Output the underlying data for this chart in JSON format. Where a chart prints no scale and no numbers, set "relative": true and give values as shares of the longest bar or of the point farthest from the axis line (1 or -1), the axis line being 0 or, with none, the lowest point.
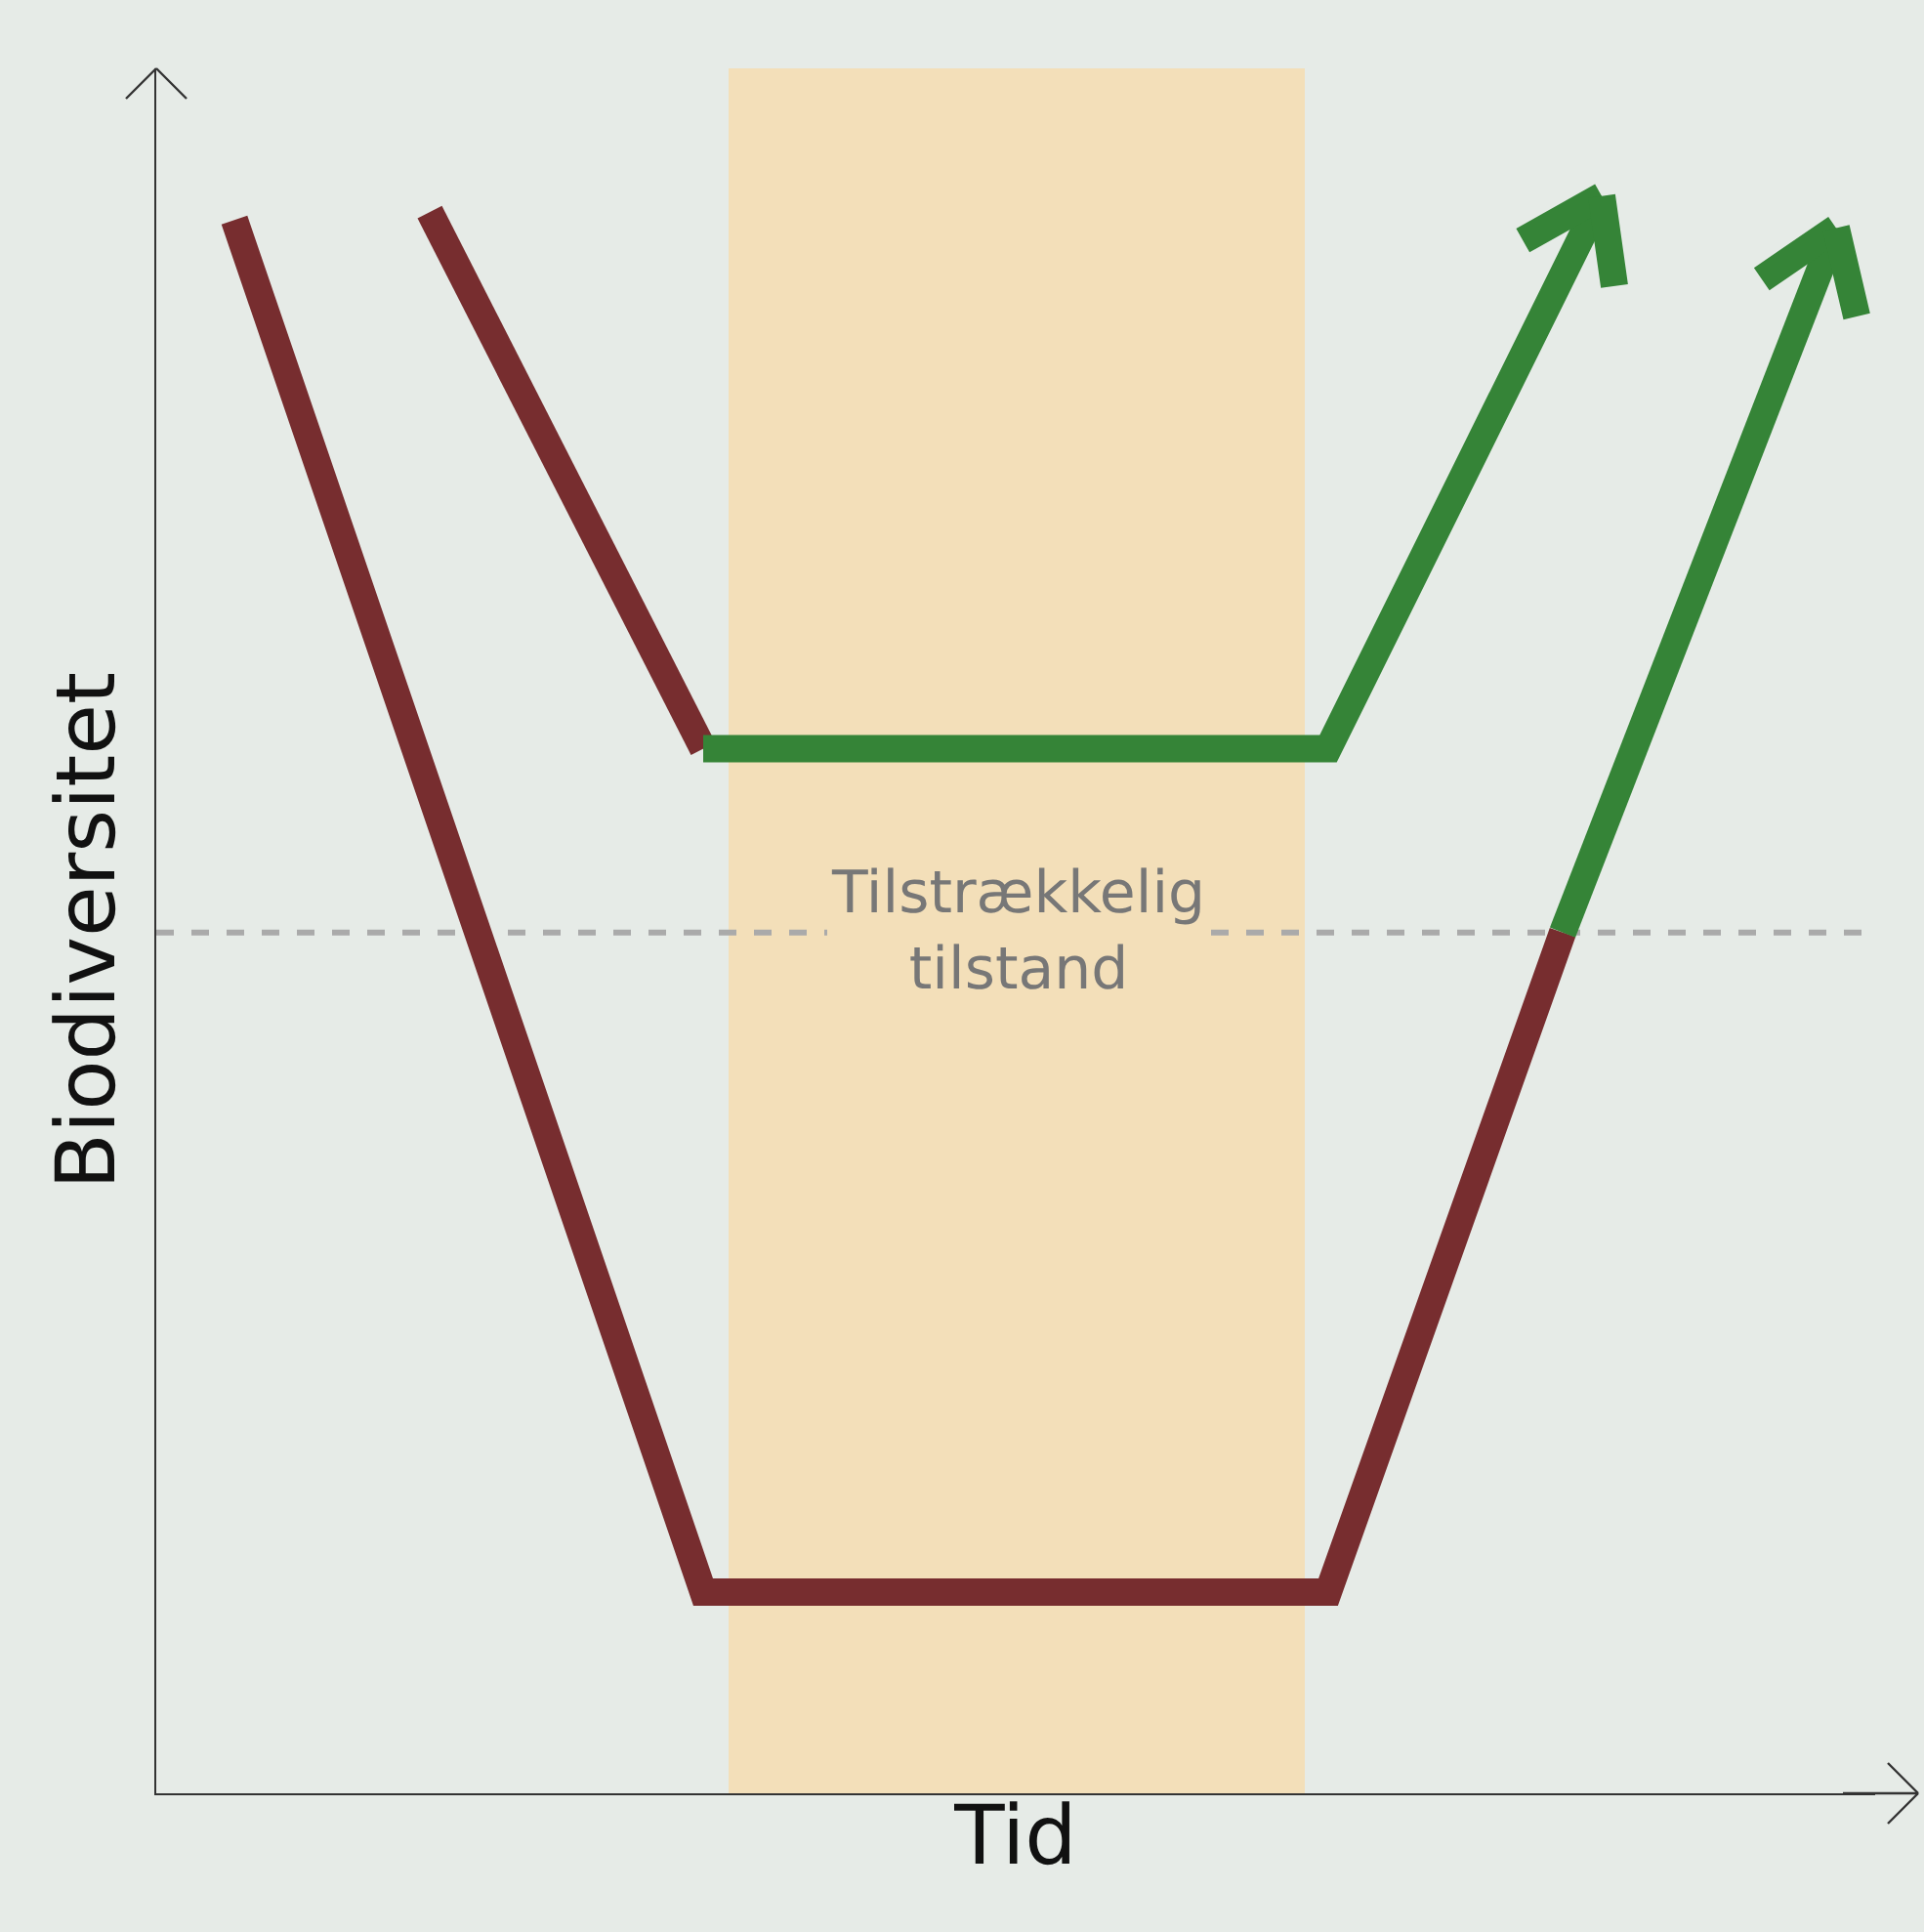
{
  "chart_data": {
    "type": "line",
    "relative": true,
    "xlabel": "Tid",
    "ylabel": "Biodiversitet",
    "tick_labels": false,
    "grid": false,
    "line_style": "solid",
    "categories": [
      null,
      null,
      null,
      null,
      null,
      null,
      null,
      null,
      null,
      null,
      null,
      null,
      null,
      null,
      null,
      null,
      null,
      null,
      null,
      null,
      null,
      null,
      null,
      null,
      null,
      null,
      null,
      null,
      null,
      null,
      null,
      null,
      null,
      null,
      null,
      null,
      null,
      null,
      null,
      null,
      null,
      null,
      null,
      null,
      null
    ],
    "series": [
      {
        "color": "#772d2f",
        "values": [
          null,
          null,
          0.985,
          null,
          null,
          null,
          null,
          null,
          null,
          null,
          null,
          null,
          null,
          null,
          0.126,
          null,
          null,
          null,
          null,
          null,
          null,
          null,
          null,
          null,
          null,
          null,
          null,
          null,
          null,
          null,
          0.126,
          null,
          null,
          null,
          null,
          null,
          0.539,
          null,
          null,
          null,
          null,
          null,
          null,
          null,
          null
        ]
      },
      {
        "color": "#358437",
        "values": [
          null,
          null,
          null,
          null,
          null,
          null,
          null,
          null,
          null,
          null,
          null,
          null,
          null,
          null,
          null,
          null,
          null,
          null,
          null,
          null,
          null,
          null,
          null,
          null,
          null,
          null,
          null,
          null,
          null,
          null,
          null,
          null,
          null,
          null,
          null,
          null,
          0.539,
          null,
          null,
          null,
          null,
          null,
          null,
          0.98,
          null
        ]
      },
      {
        "color": "#772d2f",
        "values": [
          null,
          null,
          null,
          null,
          null,
          null,
          null,
          0.99,
          null,
          null,
          null,
          null,
          null,
          null,
          0.654,
          null,
          null,
          null,
          null,
          null,
          null,
          null,
          null,
          null,
          null,
          null,
          null,
          null,
          null,
          null,
          null,
          null,
          null,
          null,
          null,
          null,
          null,
          null,
          null,
          null,
          null,
          null,
          null,
          null,
          null
        ]
      },
      {
        "color": "#358437",
        "values": [
          null,
          null,
          null,
          null,
          null,
          null,
          null,
          null,
          null,
          null,
          null,
          null,
          null,
          null,
          0.654,
          null,
          null,
          null,
          null,
          null,
          null,
          null,
          null,
          null,
          null,
          null,
          null,
          null,
          null,
          null,
          0.654,
          null,
          null,
          null,
          null,
          null,
          null,
          1.0,
          null,
          null,
          null,
          null,
          null,
          null,
          null
        ]
      }
    ],
    "ref_lines": [
      {
        "axis": "y",
        "value": 0.539,
        "label": "Tilstrækkelig\ntilstand",
        "color": "#aaaaaa",
        "line_style": "dashed"
      }
    ]
  }
}
